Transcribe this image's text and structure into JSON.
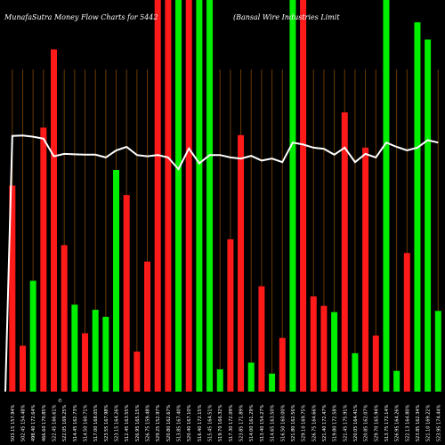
{
  "chart_data": {
    "type": "bar",
    "title_left": "MunafaSutra  Money Flow  Charts for 5442",
    "title_right": "(Bansal Wire Industries Limit",
    "symbol_mark": "©",
    "ylim": [
      0,
      100
    ],
    "colors": {
      "up": "#00ee00",
      "down": "#ff1a1a",
      "line": "#ffffff",
      "grid": "#6b3a00",
      "bg": "#000000"
    },
    "categories": [
      "503.15 157.94%",
      "502.45 154.48%",
      "498.40 172.64%",
      "466.60 170.85%",
      "522.45 166.61%",
      "522.05 169.25%",
      "514.45 162.73%",
      "514.50 160.71%",
      "517.00 168.05%",
      "523.55 167.98%",
      "523.15 164.26%",
      "512.45 163.55%",
      "526.95 165.15%",
      "526.75 159.48%",
      "529.25 152.97%",
      "520.80 162.67%",
      "513.85 167.40%",
      "520.40 167.10%",
      "516.40 172.15%",
      "515.45 164.51%",
      "519.70 166.32%",
      "517.30 172.09%",
      "523.85 171.89%",
      "514.00 161.29%",
      "513.40 154.27%",
      "514.65 163.50%",
      "516.50 160.00%",
      "521.80 162.56%",
      "529.10 169.75%",
      "526.75 164.66%",
      "521.40 172.47%",
      "519.80 172.58%",
      "521.45 175.91%",
      "520.05 164.41%",
      "520.85 162.07%",
      "529.70 165.94%",
      "513.75 172.14%",
      "526.95 164.26%",
      "522.13 164.80%",
      "523.85 162.34%",
      "521.10 169.22%",
      "523.95 174.44%"
    ],
    "values": [
      52.6,
      11.7,
      28.3,
      67.4,
      87.4,
      37.4,
      22.2,
      14.9,
      20.9,
      19.1,
      56.6,
      50.2,
      10.2,
      33.2,
      100,
      100,
      100,
      100,
      100,
      100,
      5.7,
      38.9,
      65.5,
      7.4,
      26.9,
      4.6,
      13.7,
      100,
      100,
      24.3,
      21.9,
      20.3,
      71.3,
      9.8,
      62.3,
      14.3,
      100,
      5.3,
      35.4,
      94.3,
      89.9,
      20.6
    ],
    "directions": [
      "down",
      "down",
      "up",
      "down",
      "down",
      "down",
      "up",
      "down",
      "up",
      "up",
      "up",
      "down",
      "down",
      "down",
      "down",
      "down",
      "up",
      "down",
      "up",
      "up",
      "up",
      "down",
      "down",
      "up",
      "down",
      "up",
      "down",
      "up",
      "down",
      "down",
      "down",
      "up",
      "down",
      "up",
      "down",
      "down",
      "up",
      "up",
      "down",
      "up",
      "up",
      "up"
    ],
    "line": [
      65.3,
      65.4,
      65.1,
      64.6,
      60.1,
      60.7,
      60.6,
      60.5,
      60.5,
      59.8,
      61.6,
      62.5,
      60.4,
      60.1,
      60.4,
      59.8,
      56.8,
      62.1,
      58.3,
      60.4,
      60.4,
      59.8,
      59.5,
      60.2,
      59.0,
      59.5,
      58.6,
      63.6,
      63.1,
      62.3,
      62.0,
      60.5,
      62.3,
      58.6,
      60.7,
      59.8,
      63.6,
      62.5,
      61.6,
      62.3,
      64.2,
      63.6
    ]
  }
}
